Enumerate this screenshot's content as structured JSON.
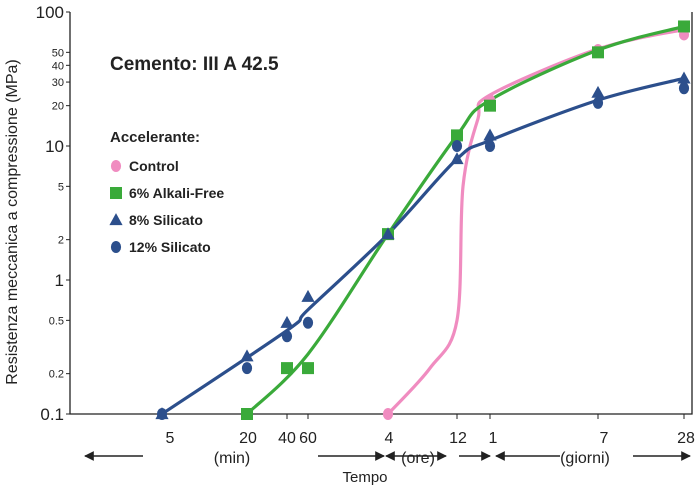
{
  "chart_data": {
    "type": "line",
    "title": "Cemento: III A 42.5",
    "ylabel": "Resistenza meccanica a compressione (MPa)",
    "xlabel": "Tempo",
    "y_scale": "log",
    "ylim": [
      0.1,
      100
    ],
    "y_ticks": [
      {
        "label": "0.1",
        "value": 0.1,
        "size": "large"
      },
      {
        "label": "0.2",
        "value": 0.2,
        "size": "small"
      },
      {
        "label": "0.5",
        "value": 0.5,
        "size": "small"
      },
      {
        "label": "1",
        "value": 1,
        "size": "large"
      },
      {
        "label": "2",
        "value": 2,
        "size": "small"
      },
      {
        "label": "5",
        "value": 5,
        "size": "small"
      },
      {
        "label": "10",
        "value": 10,
        "size": "large"
      },
      {
        "label": "20",
        "value": 20,
        "size": "small"
      },
      {
        "label": "30",
        "value": 30,
        "size": "small"
      },
      {
        "label": "40",
        "value": 40,
        "size": "small"
      },
      {
        "label": "50",
        "value": 50,
        "size": "small"
      },
      {
        "label": "100",
        "value": 100,
        "size": "large"
      }
    ],
    "x_ticks": [
      {
        "label": "5",
        "unit": "min",
        "value": 5
      },
      {
        "label": "20",
        "unit": "min",
        "value": 20
      },
      {
        "label": "40",
        "unit": "min",
        "value": 40
      },
      {
        "label": "60",
        "unit": "min",
        "value": 60
      },
      {
        "label": "4",
        "unit": "ore",
        "value": 240
      },
      {
        "label": "12",
        "unit": "ore",
        "value": 720
      },
      {
        "label": "1",
        "unit": "giorni",
        "value": 1440
      },
      {
        "label": "7",
        "unit": "giorni",
        "value": 10080
      },
      {
        "label": "28",
        "unit": "giorni",
        "value": 40320
      }
    ],
    "periods": [
      "(min)",
      "(ore)",
      "(giorni)"
    ],
    "legend_title": "Accelerante:",
    "legend_position": "left",
    "grid": false,
    "series": [
      {
        "name": "Control",
        "color": "#f08cc0",
        "marker": "circle",
        "points": [
          {
            "t": "4 ore",
            "v": 0.1
          },
          {
            "t": "1 giorni",
            "v": 22
          },
          {
            "t": "7 giorni",
            "v": 52
          },
          {
            "t": "28 giorni",
            "v": 68
          }
        ]
      },
      {
        "name": "6% Alkali-Free",
        "color": "#3aaa3a",
        "marker": "square",
        "points": [
          {
            "t": "20 min",
            "v": 0.1
          },
          {
            "t": "40 min",
            "v": 0.22
          },
          {
            "t": "60 min",
            "v": 0.22
          },
          {
            "t": "4 ore",
            "v": 2.2
          },
          {
            "t": "12 ore",
            "v": 12
          },
          {
            "t": "1 giorni",
            "v": 20
          },
          {
            "t": "7 giorni",
            "v": 50
          },
          {
            "t": "28 giorni",
            "v": 78
          }
        ]
      },
      {
        "name": "8% Silicato",
        "color": "#2c4f8c",
        "marker": "triangle",
        "points": [
          {
            "t": "5 min",
            "v": 0.1
          },
          {
            "t": "20 min",
            "v": 0.27
          },
          {
            "t": "40 min",
            "v": 0.48
          },
          {
            "t": "60 min",
            "v": 0.75
          },
          {
            "t": "4 ore",
            "v": 2.2
          },
          {
            "t": "12 ore",
            "v": 8
          },
          {
            "t": "1 giorni",
            "v": 12
          },
          {
            "t": "7 giorni",
            "v": 25
          },
          {
            "t": "28 giorni",
            "v": 32
          }
        ]
      },
      {
        "name": "12% Silicato",
        "color": "#2c4f8c",
        "marker": "circle",
        "points": [
          {
            "t": "5 min",
            "v": 0.1
          },
          {
            "t": "20 min",
            "v": 0.22
          },
          {
            "t": "40 min",
            "v": 0.38
          },
          {
            "t": "60 min",
            "v": 0.48
          },
          {
            "t": "12 ore",
            "v": 10
          },
          {
            "t": "1 giorni",
            "v": 10
          },
          {
            "t": "7 giorni",
            "v": 21
          },
          {
            "t": "28 giorni",
            "v": 27
          }
        ]
      }
    ],
    "fitted_curves": [
      {
        "name": "Control",
        "color": "#f08cc0",
        "points": [
          {
            "t": "4 ore",
            "v": 0.1
          },
          {
            "t": "8 ore",
            "v": 0.22
          },
          {
            "t": "12 ore",
            "v": 0.5
          },
          {
            "t": "14 ore",
            "v": 5
          },
          {
            "t": "18 ore",
            "v": 16
          },
          {
            "t": "1 giorni",
            "v": 24
          },
          {
            "t": "7 giorni",
            "v": 53
          },
          {
            "t": "28 giorni",
            "v": 74
          }
        ]
      },
      {
        "name": "6% Alkali-Free",
        "color": "#3aaa3a",
        "points": [
          {
            "t": "20 min",
            "v": 0.1
          },
          {
            "t": "60 min",
            "v": 0.28
          },
          {
            "t": "4 ore",
            "v": 2.2
          },
          {
            "t": "12 ore",
            "v": 12
          },
          {
            "t": "1 giorni",
            "v": 22
          },
          {
            "t": "7 giorni",
            "v": 52
          },
          {
            "t": "28 giorni",
            "v": 78
          }
        ]
      },
      {
        "name": "Silicato",
        "color": "#2c4f8c",
        "points": [
          {
            "t": "5 min",
            "v": 0.1
          },
          {
            "t": "40 min",
            "v": 0.42
          },
          {
            "t": "60 min",
            "v": 0.6
          },
          {
            "t": "4 ore",
            "v": 2.2
          },
          {
            "t": "12 ore",
            "v": 8
          },
          {
            "t": "1 giorni",
            "v": 11
          },
          {
            "t": "7 giorni",
            "v": 22
          },
          {
            "t": "28 giorni",
            "v": 32
          }
        ]
      }
    ]
  }
}
